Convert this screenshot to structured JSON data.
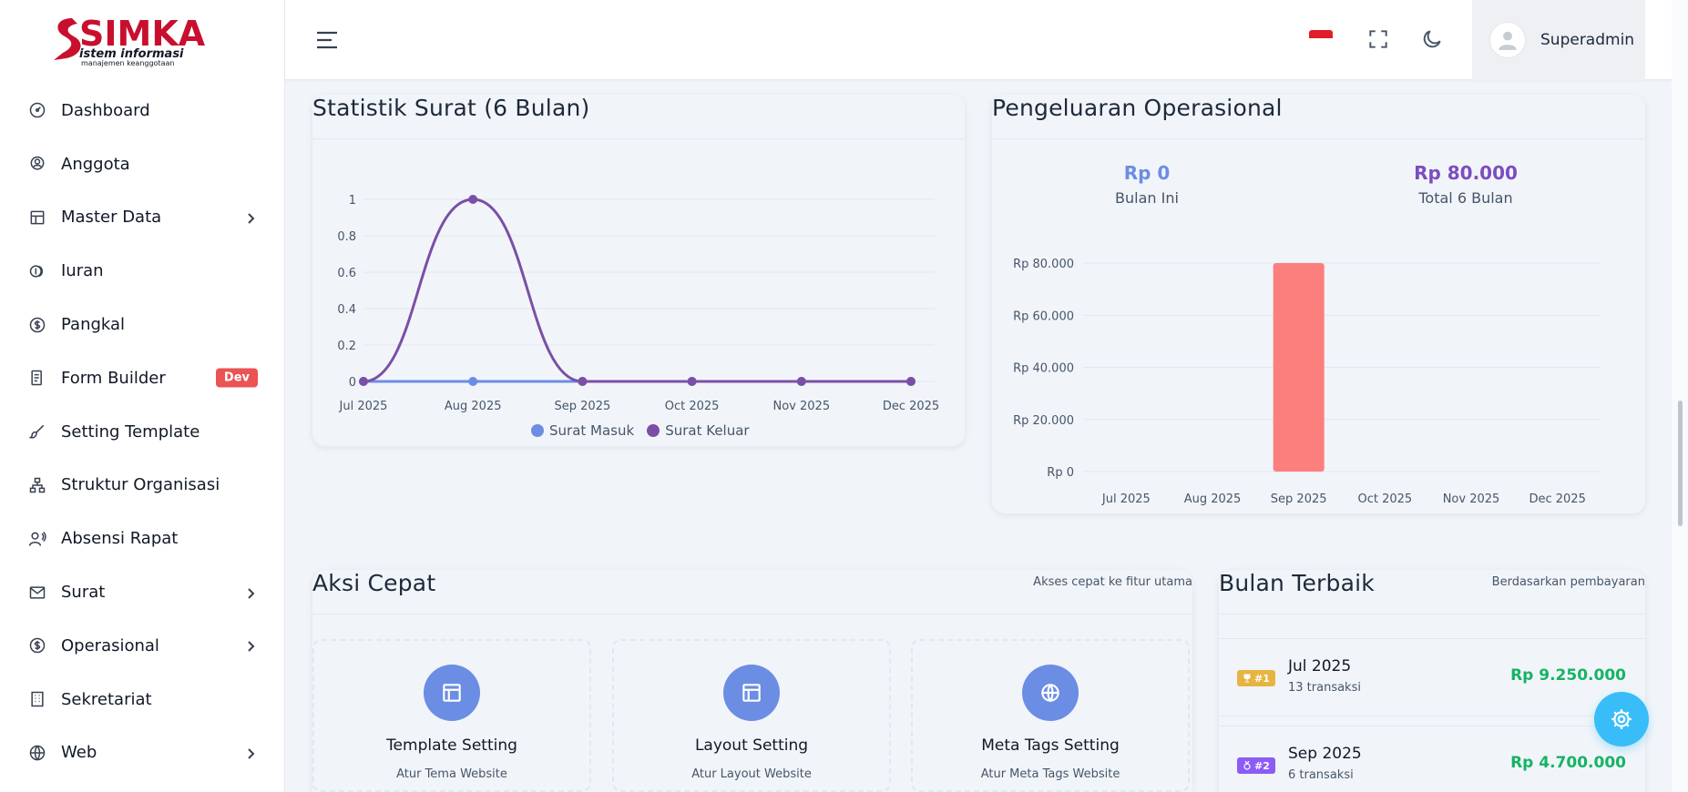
{
  "brand": {
    "logo_main": "SIMKA",
    "logo_line1": "istem informasi",
    "logo_line2": "manajemen keanggotaan"
  },
  "sidebar": {
    "items": [
      {
        "label": "Dashboard",
        "icon": "dashboard-icon"
      },
      {
        "label": "Anggota",
        "icon": "member-icon"
      },
      {
        "label": "Master Data",
        "icon": "master-data-icon",
        "has_submenu": true
      },
      {
        "label": "Iuran",
        "icon": "coins-icon"
      },
      {
        "label": "Pangkal",
        "icon": "dollar-circle-icon"
      },
      {
        "label": "Form Builder",
        "icon": "form-icon",
        "badge": "Dev"
      },
      {
        "label": "Setting Template",
        "icon": "brush-icon"
      },
      {
        "label": "Struktur Organisasi",
        "icon": "org-chart-icon"
      },
      {
        "label": "Absensi Rapat",
        "icon": "attendance-icon"
      },
      {
        "label": "Surat",
        "icon": "mail-icon",
        "has_submenu": true
      },
      {
        "label": "Operasional",
        "icon": "dollar-circle-icon",
        "has_submenu": true
      },
      {
        "label": "Sekretariat",
        "icon": "building-icon"
      },
      {
        "label": "Web",
        "icon": "globe-icon",
        "has_submenu": true
      }
    ]
  },
  "header": {
    "user_name": "Superadmin",
    "language_flag": "indonesia-flag-icon",
    "icons": [
      "menu-icon",
      "fullscreen-icon",
      "moon-icon"
    ]
  },
  "surat_card": {
    "title": "Statistik Surat (6 Bulan)",
    "legend": [
      "Surat Masuk",
      "Surat Keluar"
    ]
  },
  "operasional_card": {
    "title": "Pengeluaran Operasional",
    "kpis": [
      {
        "value": "Rp 0",
        "label": "Bulan Ini",
        "color": "#6b8de3"
      },
      {
        "value": "Rp 80.000",
        "label": "Total 6 Bulan",
        "color": "#7c4dbf"
      }
    ]
  },
  "chart_data": [
    {
      "type": "line",
      "title": "Statistik Surat (6 Bulan)",
      "categories": [
        "Jul 2025",
        "Aug 2025",
        "Sep 2025",
        "Oct 2025",
        "Nov 2025",
        "Dec 2025"
      ],
      "series": [
        {
          "name": "Surat Masuk",
          "values": [
            0,
            0,
            0,
            0,
            0,
            0
          ],
          "color": "#6b8de3"
        },
        {
          "name": "Surat Keluar",
          "values": [
            0,
            1,
            0,
            0,
            0,
            0
          ],
          "color": "#7b4fa6"
        }
      ],
      "ylim": [
        0,
        1
      ],
      "yticks": [
        "0",
        "0.2",
        "0.4",
        "0.6",
        "0.8",
        "1"
      ],
      "legend": "bottom",
      "grid": true
    },
    {
      "type": "bar",
      "title": "Pengeluaran Operasional",
      "categories": [
        "Jul 2025",
        "Aug 2025",
        "Sep 2025",
        "Oct 2025",
        "Nov 2025",
        "Dec 2025"
      ],
      "values": [
        0,
        0,
        80000,
        0,
        0,
        0
      ],
      "color": "#fb7f7d",
      "ylim": [
        0,
        80000
      ],
      "yticks": [
        "Rp 0",
        "Rp 20.000",
        "Rp 40.000",
        "Rp 60.000",
        "Rp 80.000"
      ],
      "grid": true
    }
  ],
  "quick_actions": {
    "title": "Aksi Cepat",
    "subtitle": "Akses cepat ke fitur utama",
    "items": [
      {
        "title": "Template Setting",
        "subtitle": "Atur Tema Website",
        "icon": "layout-icon"
      },
      {
        "title": "Layout Setting",
        "subtitle": "Atur Layout Website",
        "icon": "layout-icon"
      },
      {
        "title": "Meta Tags Setting",
        "subtitle": "Atur Meta Tags Website",
        "icon": "globe-icon"
      }
    ]
  },
  "best_months": {
    "title": "Bulan Terbaik",
    "subtitle": "Berdasarkan pembayaran",
    "items": [
      {
        "rank": "#1",
        "month": "Jul 2025",
        "count": "13 transaksi",
        "amount": "Rp 9.250.000",
        "badge_color": "#e8b441",
        "icon": "trophy-icon"
      },
      {
        "rank": "#2",
        "month": "Sep 2025",
        "count": "6 transaksi",
        "amount": "Rp 4.700.000",
        "badge_color": "#8b5cf6",
        "icon": "medal-icon"
      }
    ]
  },
  "fab": {
    "icon": "gear-icon"
  }
}
